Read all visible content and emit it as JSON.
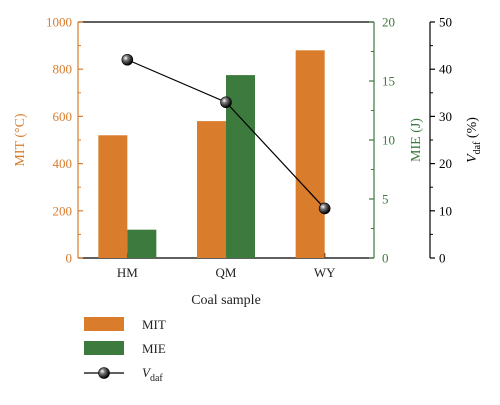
{
  "chart_data": {
    "type": "bar",
    "xlabel": "Coal sample",
    "categories": [
      "HM",
      "QM",
      "WY"
    ],
    "series": [
      {
        "name": "MIT",
        "kind": "bar",
        "axis": "left",
        "color": "#d97c2b",
        "values": [
          520,
          580,
          880
        ]
      },
      {
        "name": "MIE",
        "kind": "bar",
        "axis": "right1",
        "color": "#3d7a3d",
        "values": [
          2.4,
          15.5,
          null
        ]
      },
      {
        "name": "V",
        "name_sub": "daf",
        "kind": "line",
        "axis": "right2",
        "color": "#000000",
        "values": [
          42,
          33,
          10.5
        ]
      }
    ],
    "axes": {
      "left": {
        "label": "MIT (°C)",
        "color": "#d97c2b",
        "min": 0,
        "max": 1000,
        "ticks": [
          "0",
          "200",
          "400",
          "600",
          "800",
          "1000"
        ]
      },
      "right1": {
        "label": "MIE (J)",
        "color": "#3d7a3d",
        "min": 0,
        "max": 20,
        "ticks": [
          "0",
          "5",
          "10",
          "15",
          "20"
        ]
      },
      "right2": {
        "label_main": "V",
        "label_sub": "daf",
        "label_suffix": " (%)",
        "color": "#000000",
        "min": 0,
        "max": 50,
        "ticks": [
          "0",
          "10",
          "20",
          "30",
          "40",
          "50"
        ]
      }
    },
    "legend": {
      "placement": "bottom-left",
      "items": [
        {
          "label": "MIT",
          "type": "bar",
          "color": "#d97c2b"
        },
        {
          "label": "MIE",
          "type": "bar",
          "color": "#3d7a3d"
        },
        {
          "label": "V",
          "sub": "daf",
          "type": "line-marker",
          "color": "#000000"
        }
      ]
    }
  }
}
